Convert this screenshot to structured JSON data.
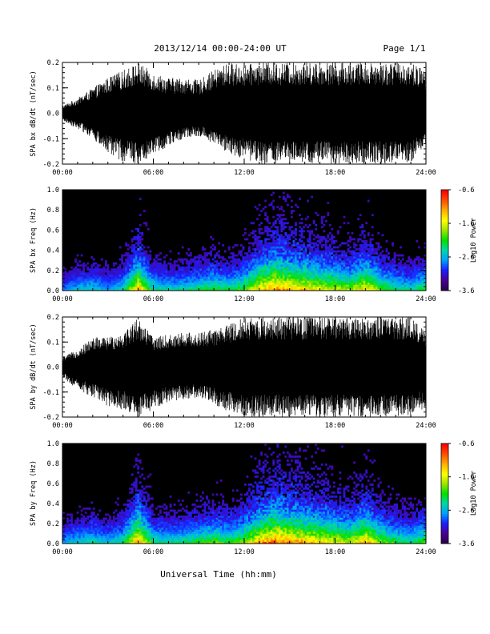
{
  "header": {
    "date_range": "2013/12/14  00:00-24:00 UT",
    "page": "Page 1/1"
  },
  "footer": {
    "xlabel": "Universal Time (hh:mm)"
  },
  "colors": {
    "trace": "#000000",
    "spectrogram_background": "#000000",
    "colormap": [
      "#2a004a",
      "#4b0096",
      "#1a20ff",
      "#00a0ff",
      "#00d8a8",
      "#00e000",
      "#9ce400",
      "#ffff00",
      "#ffb000",
      "#ff5000",
      "#ff0000"
    ]
  },
  "chart_data": [
    {
      "type": "line",
      "ylabel": "SPA bx dB/dt (nT/sec)",
      "xlim": [
        "00:00",
        "24:00"
      ],
      "ylim": [
        -0.2,
        0.2
      ],
      "xticks": [
        "00:00",
        "06:00",
        "12:00",
        "18:00",
        "24:00"
      ],
      "yticks": [
        "-0.2",
        "-0.1",
        "0.0",
        "0.1",
        "0.2"
      ],
      "x_hours": [
        0,
        1,
        2,
        3,
        4,
        5,
        6,
        7,
        8,
        9,
        10,
        11,
        12,
        13,
        14,
        15,
        16,
        17,
        18,
        19,
        20,
        21,
        22,
        23,
        24
      ],
      "envelope_max": [
        0.03,
        0.06,
        0.1,
        0.14,
        0.17,
        0.2,
        0.16,
        0.14,
        0.14,
        0.13,
        0.17,
        0.2,
        0.19,
        0.2,
        0.2,
        0.2,
        0.2,
        0.2,
        0.2,
        0.2,
        0.2,
        0.2,
        0.2,
        0.2,
        0.17
      ],
      "envelope_min": [
        -0.03,
        -0.06,
        -0.1,
        -0.16,
        -0.19,
        -0.2,
        -0.16,
        -0.13,
        -0.1,
        -0.09,
        -0.12,
        -0.16,
        -0.18,
        -0.2,
        -0.2,
        -0.2,
        -0.2,
        -0.2,
        -0.2,
        -0.2,
        -0.2,
        -0.2,
        -0.2,
        -0.2,
        -0.12
      ]
    },
    {
      "type": "heatmap",
      "ylabel": "SPA bx Freq (Hz)",
      "xlim": [
        "00:00",
        "24:00"
      ],
      "ylim": [
        0.0,
        1.0
      ],
      "xticks": [
        "00:00",
        "06:00",
        "12:00",
        "18:00",
        "24:00"
      ],
      "yticks": [
        "0.0",
        "0.2",
        "0.4",
        "0.6",
        "0.8",
        "1.0"
      ],
      "colorbar": {
        "label": "Log10 Power",
        "ticks": [
          "-0.6",
          "-1.6",
          "-2.6",
          "-3.6"
        ],
        "range": [
          -3.6,
          -0.6
        ]
      },
      "x_hours": [
        0,
        1,
        2,
        3,
        4,
        5,
        6,
        7,
        8,
        9,
        10,
        11,
        12,
        13,
        14,
        15,
        16,
        17,
        18,
        19,
        20,
        21,
        22,
        23,
        24
      ],
      "activity": [
        0.25,
        0.35,
        0.38,
        0.3,
        0.4,
        0.8,
        0.42,
        0.38,
        0.4,
        0.45,
        0.5,
        0.45,
        0.55,
        0.75,
        0.85,
        0.8,
        0.75,
        0.7,
        0.65,
        0.6,
        0.75,
        0.55,
        0.45,
        0.4,
        0.5
      ]
    },
    {
      "type": "line",
      "ylabel": "SPA by dB/dt (nT/sec)",
      "xlim": [
        "00:00",
        "24:00"
      ],
      "ylim": [
        -0.2,
        0.2
      ],
      "xticks": [
        "00:00",
        "06:00",
        "12:00",
        "18:00",
        "24:00"
      ],
      "yticks": [
        "-0.2",
        "-0.1",
        "0.0",
        "0.1",
        "0.2"
      ],
      "x_hours": [
        0,
        1,
        2,
        3,
        4,
        5,
        6,
        7,
        8,
        9,
        10,
        11,
        12,
        13,
        14,
        15,
        16,
        17,
        18,
        19,
        20,
        21,
        22,
        23,
        24
      ],
      "envelope_max": [
        0.04,
        0.07,
        0.12,
        0.12,
        0.14,
        0.2,
        0.12,
        0.13,
        0.14,
        0.14,
        0.15,
        0.17,
        0.2,
        0.2,
        0.2,
        0.2,
        0.2,
        0.2,
        0.2,
        0.2,
        0.2,
        0.2,
        0.2,
        0.2,
        0.14
      ],
      "envelope_min": [
        -0.04,
        -0.09,
        -0.12,
        -0.16,
        -0.17,
        -0.2,
        -0.17,
        -0.14,
        -0.13,
        -0.12,
        -0.15,
        -0.18,
        -0.2,
        -0.2,
        -0.2,
        -0.2,
        -0.2,
        -0.2,
        -0.2,
        -0.2,
        -0.2,
        -0.2,
        -0.2,
        -0.2,
        -0.16
      ]
    },
    {
      "type": "heatmap",
      "ylabel": "SPA by Freq (Hz)",
      "xlim": [
        "00:00",
        "24:00"
      ],
      "ylim": [
        0.0,
        1.0
      ],
      "xticks": [
        "00:00",
        "06:00",
        "12:00",
        "18:00",
        "24:00"
      ],
      "yticks": [
        "0.0",
        "0.2",
        "0.4",
        "0.6",
        "0.8",
        "1.0"
      ],
      "colorbar": {
        "label": "Log10 Power",
        "ticks": [
          "-0.6",
          "-1.6",
          "-2.6",
          "-3.6"
        ],
        "range": [
          -3.6,
          -0.6
        ]
      },
      "x_hours": [
        0,
        1,
        2,
        3,
        4,
        5,
        6,
        7,
        8,
        9,
        10,
        11,
        12,
        13,
        14,
        15,
        16,
        17,
        18,
        19,
        20,
        21,
        22,
        23,
        24
      ],
      "activity": [
        0.3,
        0.38,
        0.42,
        0.35,
        0.45,
        0.85,
        0.45,
        0.42,
        0.45,
        0.5,
        0.55,
        0.5,
        0.6,
        0.8,
        0.9,
        0.85,
        0.8,
        0.75,
        0.7,
        0.65,
        0.8,
        0.6,
        0.5,
        0.45,
        0.55
      ]
    }
  ]
}
